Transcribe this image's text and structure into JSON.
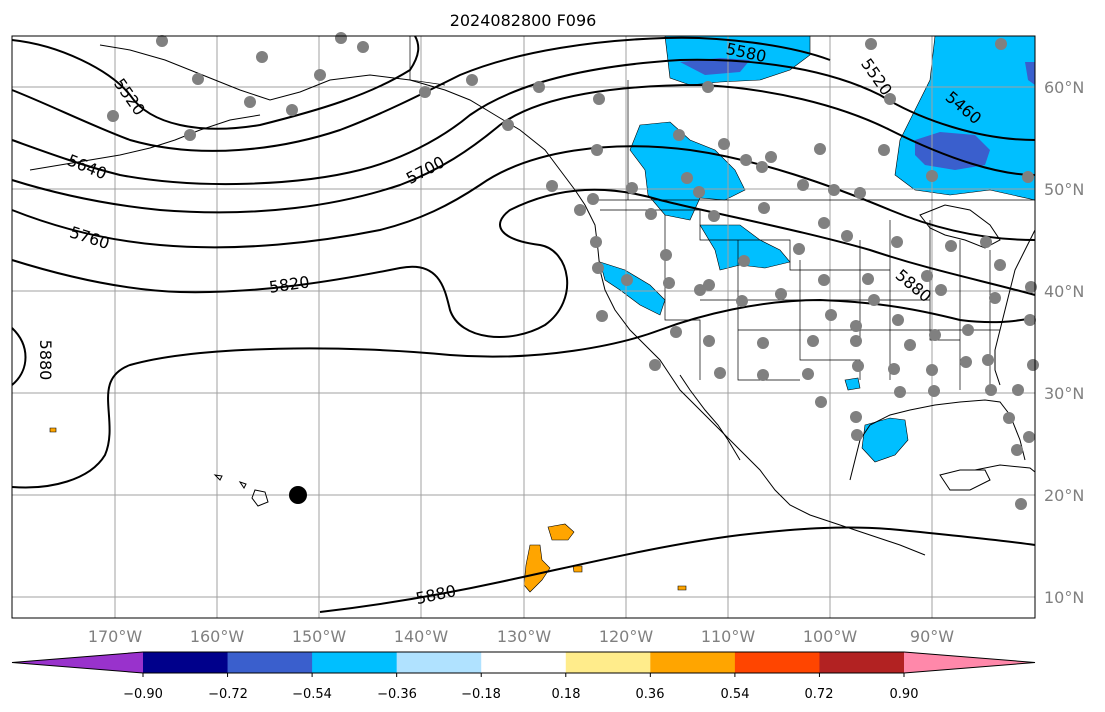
{
  "title": "2024082800 F096",
  "lon_labels": [
    "170°W",
    "160°W",
    "150°W",
    "140°W",
    "130°W",
    "120°W",
    "110°W",
    "100°W",
    "90°W"
  ],
  "lat_labels": [
    "60°N",
    "50°N",
    "40°N",
    "30°N",
    "20°N",
    "10°N"
  ],
  "contour_labels": [
    "5520",
    "5580",
    "5520",
    "5460",
    "5640",
    "5700",
    "5760",
    "5820",
    "5880",
    "5880",
    "5880"
  ],
  "colorbar": {
    "colors": [
      "#9932cc",
      "#00008b",
      "#3a5fcd",
      "#00bfff",
      "#b0e2ff",
      "#ffffff",
      "#ffec8b",
      "#ffa500",
      "#ff4500",
      "#b22222",
      "#ff88aa"
    ],
    "tick_labels": [
      "−0.90",
      "−0.72",
      "−0.54",
      "−0.36",
      "−0.18",
      "0.18",
      "0.36",
      "0.54",
      "0.72",
      "0.90"
    ]
  }
}
